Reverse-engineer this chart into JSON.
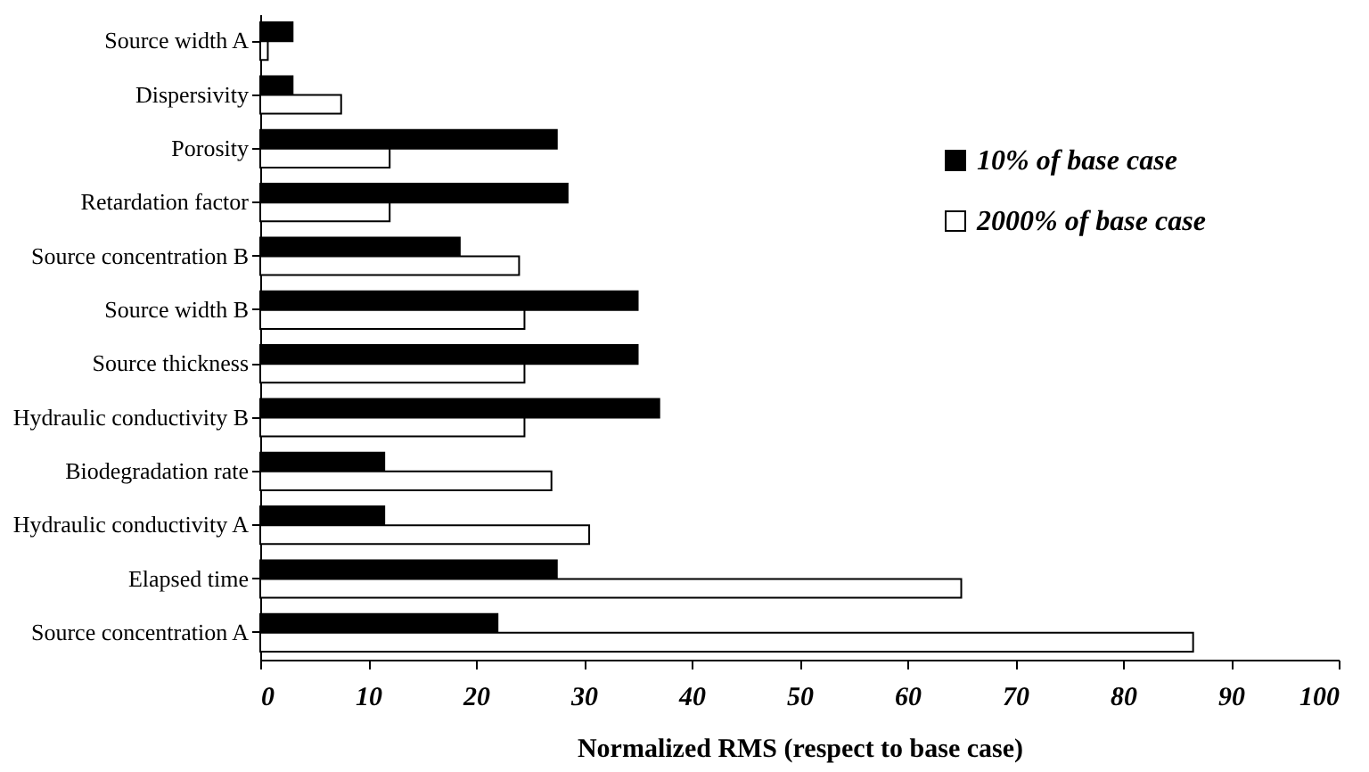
{
  "chart_data": {
    "type": "bar",
    "orientation": "horizontal",
    "xlabel": "Normalized RMS (respect to base case)",
    "categories": [
      "Source width A",
      "Dispersivity",
      "Porosity",
      "Retardation factor",
      "Source concentration B",
      "Source width B",
      "Source thickness",
      "Hydraulic conductivity B",
      "Biodegradation rate",
      "Hydraulic conductivity A",
      "Elapsed time",
      "Source concentration A"
    ],
    "series": [
      {
        "name": "10% of base case",
        "color": "#000000",
        "values": [
          3,
          3,
          27.5,
          28.5,
          18.5,
          35,
          35,
          37,
          11.5,
          11.5,
          27.5,
          22
        ]
      },
      {
        "name": "2000% of base case",
        "color": "#ffffff",
        "values": [
          0.7,
          7.5,
          12,
          12,
          24,
          24.5,
          24.5,
          24.5,
          27,
          30.5,
          65,
          86.5
        ]
      }
    ],
    "xlim": [
      0,
      100
    ],
    "xticks": [
      0,
      10,
      20,
      30,
      40,
      50,
      60,
      70,
      80,
      90,
      100
    ],
    "grid": false,
    "legend": "top right"
  }
}
